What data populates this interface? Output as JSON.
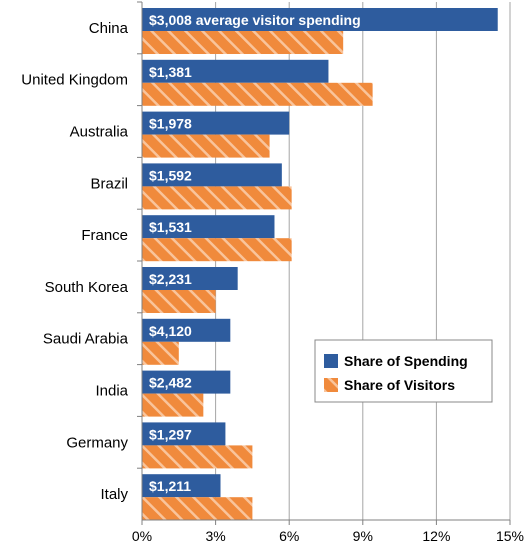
{
  "chart_data": {
    "type": "bar",
    "orientation": "horizontal",
    "categories": [
      "China",
      "United Kingdom",
      "Australia",
      "Brazil",
      "France",
      "South Korea",
      "Saudi Arabia",
      "India",
      "Germany",
      "Italy"
    ],
    "series": [
      {
        "name": "Share of Spending",
        "color": "#2E5C9E",
        "values": [
          14.5,
          7.6,
          6.0,
          5.7,
          5.4,
          3.9,
          3.6,
          3.6,
          3.4,
          3.2
        ],
        "labels": [
          "$3,008 average visitor spending",
          "$1,381",
          "$1,978",
          "$1,592",
          "$1,531",
          "$2,231",
          "$4,120",
          "$2,482",
          "$1,297",
          "$1,211"
        ]
      },
      {
        "name": "Share of Visitors",
        "color": "#F08A3C",
        "pattern": "diagonal-hatch",
        "values": [
          8.2,
          9.4,
          5.2,
          6.1,
          6.1,
          3.0,
          1.5,
          2.5,
          4.5,
          4.5
        ]
      }
    ],
    "x_ticks": [
      "0%",
      "3%",
      "6%",
      "9%",
      "12%",
      "15%"
    ],
    "x_tick_values": [
      0,
      3,
      6,
      9,
      12,
      15
    ],
    "xlim": [
      0,
      15
    ],
    "grid": true,
    "legend_position": "center-right",
    "title": "",
    "xlabel": "",
    "ylabel": ""
  }
}
